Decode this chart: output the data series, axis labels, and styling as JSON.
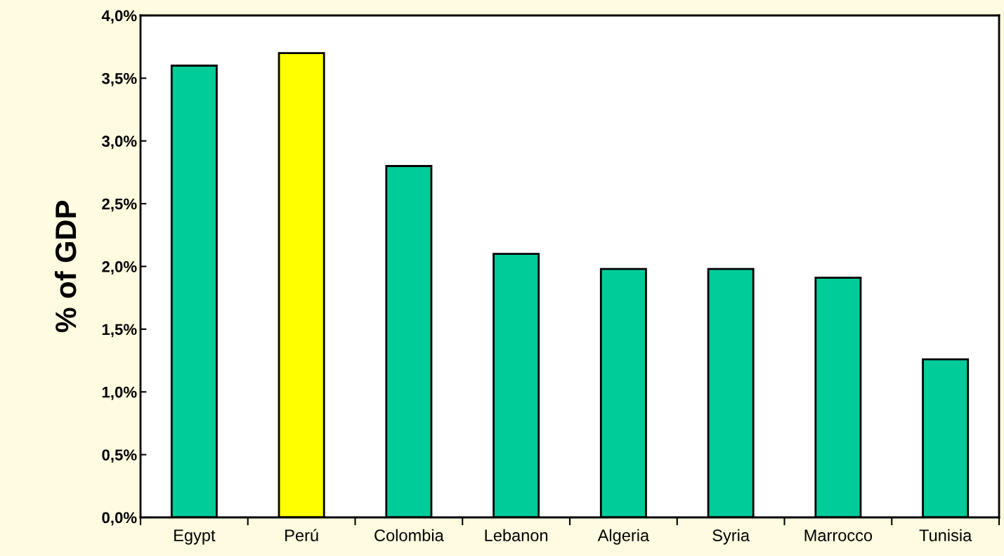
{
  "chart_data": {
    "type": "bar",
    "ylabel": "% of GDP",
    "categories": [
      "Egypt",
      "Perú",
      "Colombia",
      "Lebanon",
      "Algeria",
      "Syria",
      "Marrocco",
      "Tunisia"
    ],
    "values": [
      3.6,
      3.7,
      2.8,
      2.1,
      1.98,
      1.98,
      1.91,
      1.26
    ],
    "colors": [
      "#00cc99",
      "#ffff00",
      "#00cc99",
      "#00cc99",
      "#00cc99",
      "#00cc99",
      "#00cc99",
      "#00cc99"
    ],
    "ylim": [
      0,
      4
    ],
    "yticks": [
      {
        "value": 0,
        "label": "0,0%"
      },
      {
        "value": 0.5,
        "label": "0,5%"
      },
      {
        "value": 1,
        "label": "1,0%"
      },
      {
        "value": 1.5,
        "label": "1,5%"
      },
      {
        "value": 2,
        "label": "2,0%"
      },
      {
        "value": 2.5,
        "label": "2,5%"
      },
      {
        "value": 3,
        "label": "3,0%"
      },
      {
        "value": 3.5,
        "label": "3,5%"
      },
      {
        "value": 4,
        "label": "4,0%"
      }
    ],
    "grid": false,
    "legend": false
  }
}
